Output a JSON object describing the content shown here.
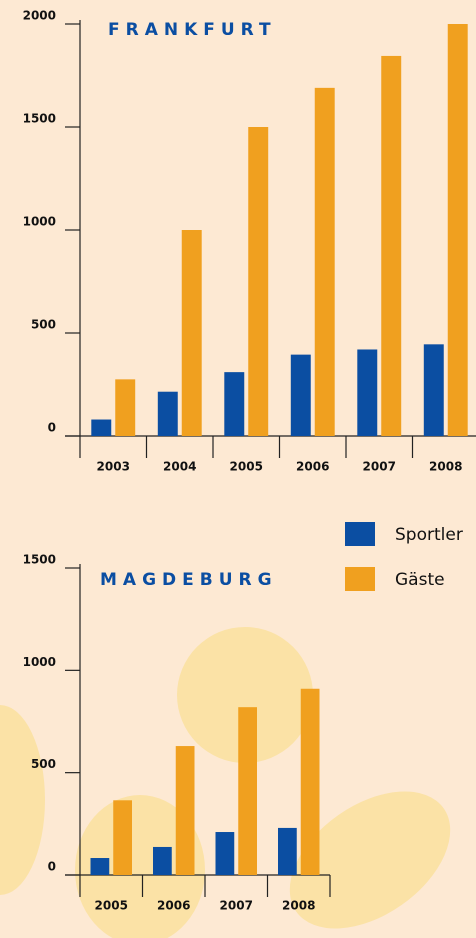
{
  "chart_data": [
    {
      "type": "bar",
      "title": "FRANKFURT",
      "categories": [
        "2003",
        "2004",
        "2005",
        "2006",
        "2007",
        "2008"
      ],
      "series": [
        {
          "name": "Sportler",
          "color": "#0b4ea2",
          "values": [
            80,
            215,
            310,
            395,
            420,
            445
          ]
        },
        {
          "name": "Gäste",
          "color": "#f0a01f",
          "values": [
            275,
            1000,
            1500,
            1690,
            1845,
            2000
          ]
        }
      ],
      "ylim": [
        0,
        2000
      ],
      "yticks": [
        0,
        500,
        1000,
        1500,
        2000
      ]
    },
    {
      "type": "bar",
      "title": "MAGDEBURG",
      "categories": [
        "2005",
        "2006",
        "2007",
        "2008"
      ],
      "series": [
        {
          "name": "Sportler",
          "color": "#0b4ea2",
          "values": [
            83,
            137,
            210,
            230
          ]
        },
        {
          "name": "Gäste",
          "color": "#f0a01f",
          "values": [
            365,
            630,
            820,
            910
          ]
        }
      ],
      "ylim": [
        0,
        1500
      ],
      "yticks": [
        0,
        500,
        1000,
        1500
      ]
    }
  ]
}
